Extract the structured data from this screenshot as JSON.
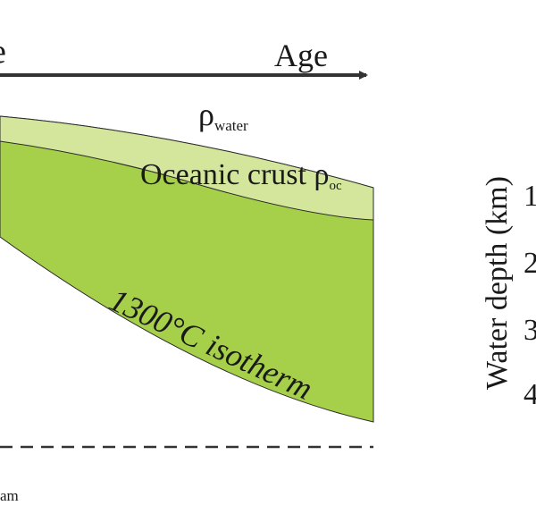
{
  "colors": {
    "background": "#ffffff",
    "lithosphere": "#a6cf4a",
    "oceanic_crust": "#d3e69b",
    "outline": "#222222",
    "text": "#1a1a1a"
  },
  "top_left_fragment": "e",
  "age_label": "Age",
  "rho_symbol": "ρ",
  "rho_water_subscript": "water",
  "oceanic_crust_label": "Oceanic crust ",
  "rho_oc_subscript": "oc",
  "isotherm_label": "1300°C isotherm",
  "right_axis": {
    "label": "Water depth (km)",
    "ticks": [
      "1",
      "2",
      "3",
      "4"
    ]
  },
  "bottom_left_fragment": "am"
}
